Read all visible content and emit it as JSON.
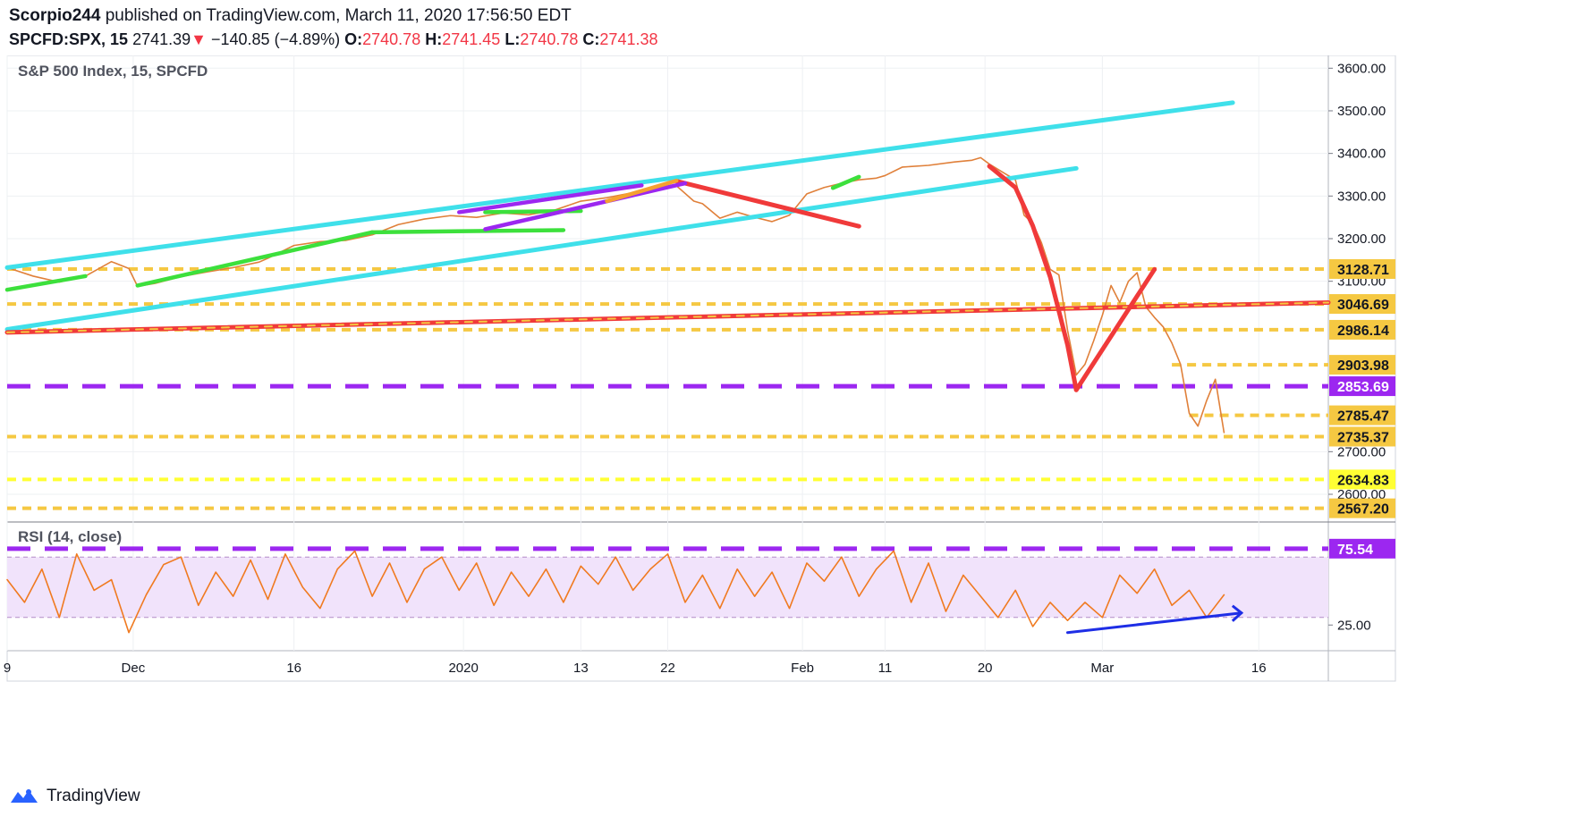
{
  "header": {
    "author": "Scorpio244",
    "published_text": "published on TradingView.com, March 11, 2020 17:56:50 EDT",
    "symbol": "SPCFD:SPX, 15",
    "last": "2741.39",
    "change": "−140.85",
    "change_pct": "(−4.89%)",
    "o_label": "O:",
    "o_value": "2740.78",
    "h_label": "H:",
    "h_value": "2741.45",
    "l_label": "L:",
    "l_value": "2740.78",
    "c_label": "C:",
    "c_value": "2741.38"
  },
  "footer": {
    "brand": "TradingView"
  },
  "chart_data": [
    {
      "type": "line",
      "title": "S&P 500 Index, 15, SPCFD",
      "ylim": [
        2535,
        3630
      ],
      "y_ticks": [
        2600,
        2700,
        3100,
        3200,
        3300,
        3400,
        3500,
        3600
      ],
      "y_tick_labels": [
        "2600.00",
        "2700.00",
        "3100.00",
        "3200.00",
        "3300.00",
        "3400.00",
        "3500.00",
        "3600.00"
      ],
      "x_ticks": [
        {
          "i": 0,
          "label": "9"
        },
        {
          "i": 14.5,
          "label": "Dec"
        },
        {
          "i": 33,
          "label": "16"
        },
        {
          "i": 52.5,
          "label": "2020"
        },
        {
          "i": 66,
          "label": "13"
        },
        {
          "i": 76,
          "label": "22"
        },
        {
          "i": 91.5,
          "label": "Feb"
        },
        {
          "i": 101,
          "label": "11"
        },
        {
          "i": 112.5,
          "label": "20"
        },
        {
          "i": 126,
          "label": "Mar"
        },
        {
          "i": 144,
          "label": "16"
        }
      ],
      "x_max": 152,
      "series": [
        {
          "name": "SPX 15m (approx.)",
          "color": "#e0803a",
          "x": [
            0,
            3,
            6,
            9,
            12,
            14,
            15,
            17,
            20,
            23,
            26,
            29,
            30,
            33,
            36,
            39,
            42,
            45,
            48,
            51,
            54,
            57,
            60,
            63,
            66,
            69,
            72,
            75,
            77,
            79,
            80,
            82,
            84,
            86,
            88,
            90,
            92,
            94,
            96,
            98,
            100,
            101,
            103,
            106,
            109,
            111,
            112,
            113,
            115,
            116,
            117,
            118,
            119,
            120,
            121,
            122,
            123,
            124,
            125,
            126,
            127,
            128,
            129,
            130,
            131,
            132,
            133,
            134,
            135,
            136,
            137,
            138,
            139,
            140
          ],
          "y": [
            3132,
            3112,
            3098,
            3112,
            3146,
            3130,
            3088,
            3095,
            3111,
            3122,
            3132,
            3145,
            3154,
            3184,
            3193,
            3196,
            3209,
            3233,
            3246,
            3254,
            3250,
            3260,
            3256,
            3267,
            3288,
            3296,
            3308,
            3323,
            3324,
            3288,
            3282,
            3248,
            3262,
            3250,
            3240,
            3255,
            3305,
            3320,
            3330,
            3338,
            3342,
            3348,
            3368,
            3372,
            3380,
            3384,
            3390,
            3375,
            3350,
            3338,
            3255,
            3236,
            3190,
            3128,
            3115,
            2985,
            2880,
            2905,
            2960,
            3020,
            3090,
            3050,
            3100,
            3120,
            3040,
            3015,
            2993,
            2955,
            2905,
            2790,
            2760,
            2820,
            2870,
            2745
          ]
        },
        {
          "name": "Upper channel (cyan)",
          "color": "#3fe0ea",
          "x": [
            0,
            141
          ],
          "y": [
            3132,
            3519
          ]
        },
        {
          "name": "Lower channel (cyan)",
          "color": "#3fe0ea",
          "x": [
            0,
            123
          ],
          "y": [
            2987,
            3365
          ]
        },
        {
          "name": "Long-term trendline (red)",
          "color": "#f03a3a",
          "x": [
            0,
            152
          ],
          "y": [
            2980,
            3050
          ]
        },
        {
          "name": "Dec-Feb resistance (red)",
          "color": "#f03a3a",
          "x": [
            77,
            98
          ],
          "y": [
            3335,
            3229
          ]
        },
        {
          "name": "Crash curve (red)",
          "color": "#f03a3a",
          "x": [
            113,
            116,
            118,
            120,
            122,
            123
          ],
          "y": [
            3370,
            3320,
            3230,
            3110,
            2950,
            2845
          ]
        },
        {
          "name": "Rebound leg (red)",
          "color": "#f03a3a",
          "x": [
            123,
            132
          ],
          "y": [
            2845,
            3128
          ]
        }
      ],
      "levels": [
        {
          "value": 3128.71,
          "label": "3128.71",
          "color": "#f5c842",
          "style": "dashed"
        },
        {
          "value": 3046.69,
          "label": "3046.69",
          "color": "#f5c842",
          "style": "dashed"
        },
        {
          "value": 2986.14,
          "label": "2986.14",
          "color": "#f5c842",
          "style": "dashed"
        },
        {
          "value": 2903.98,
          "label": "2903.98",
          "color": "#f5c842",
          "style": "dashed",
          "from_i": 134
        },
        {
          "value": 2853.69,
          "label": "2853.69",
          "color": "#9c27f0",
          "style": "dashed"
        },
        {
          "value": 2785.47,
          "label": "2785.47",
          "color": "#f5c842",
          "style": "dashed",
          "from_i": 136
        },
        {
          "value": 2735.37,
          "label": "2735.37",
          "color": "#f5c842",
          "style": "dashed"
        },
        {
          "value": 2634.83,
          "label": "2634.83",
          "color": "#ffff33",
          "style": "dashed"
        },
        {
          "value": 2567.2,
          "label": "2567.20",
          "color": "#f5c842",
          "style": "dashed"
        }
      ]
    },
    {
      "type": "line",
      "title": "RSI (14, close)",
      "ylim": [
        8,
        92
      ],
      "band": [
        30,
        70
      ],
      "y_tick_labels": [
        "25.00"
      ],
      "y_ticks": [
        25
      ],
      "series": [
        {
          "name": "RSI",
          "color": "#f07a20",
          "x": [
            0,
            2,
            4,
            6,
            8,
            10,
            12,
            14,
            16,
            18,
            20,
            22,
            24,
            26,
            28,
            30,
            32,
            34,
            36,
            38,
            40,
            42,
            44,
            46,
            48,
            50,
            52,
            54,
            56,
            58,
            60,
            62,
            64,
            66,
            68,
            70,
            72,
            74,
            76,
            78,
            80,
            82,
            84,
            86,
            88,
            90,
            92,
            94,
            96,
            98,
            100,
            102,
            104,
            106,
            108,
            110,
            112,
            114,
            116,
            118,
            120,
            122,
            124,
            126,
            128,
            130,
            132,
            134,
            136,
            138,
            140
          ],
          "y": [
            55,
            40,
            62,
            30,
            72,
            48,
            55,
            20,
            45,
            65,
            70,
            38,
            60,
            44,
            68,
            42,
            72,
            50,
            36,
            62,
            74,
            44,
            66,
            40,
            62,
            70,
            48,
            66,
            38,
            60,
            44,
            62,
            40,
            64,
            52,
            70,
            48,
            62,
            72,
            40,
            58,
            36,
            62,
            44,
            60,
            36,
            66,
            54,
            70,
            44,
            62,
            74,
            40,
            66,
            34,
            58,
            44,
            30,
            48,
            24,
            40,
            28,
            40,
            30,
            58,
            46,
            62,
            38,
            48,
            30,
            45
          ]
        },
        {
          "name": "RSI divergence (blue)",
          "color": "#1e2ee6",
          "x": [
            122,
            142
          ],
          "y": [
            20,
            33
          ]
        }
      ],
      "levels": [
        {
          "value": 75.54,
          "label": "75.54",
          "color": "#9c27f0",
          "style": "dashed"
        }
      ]
    }
  ]
}
